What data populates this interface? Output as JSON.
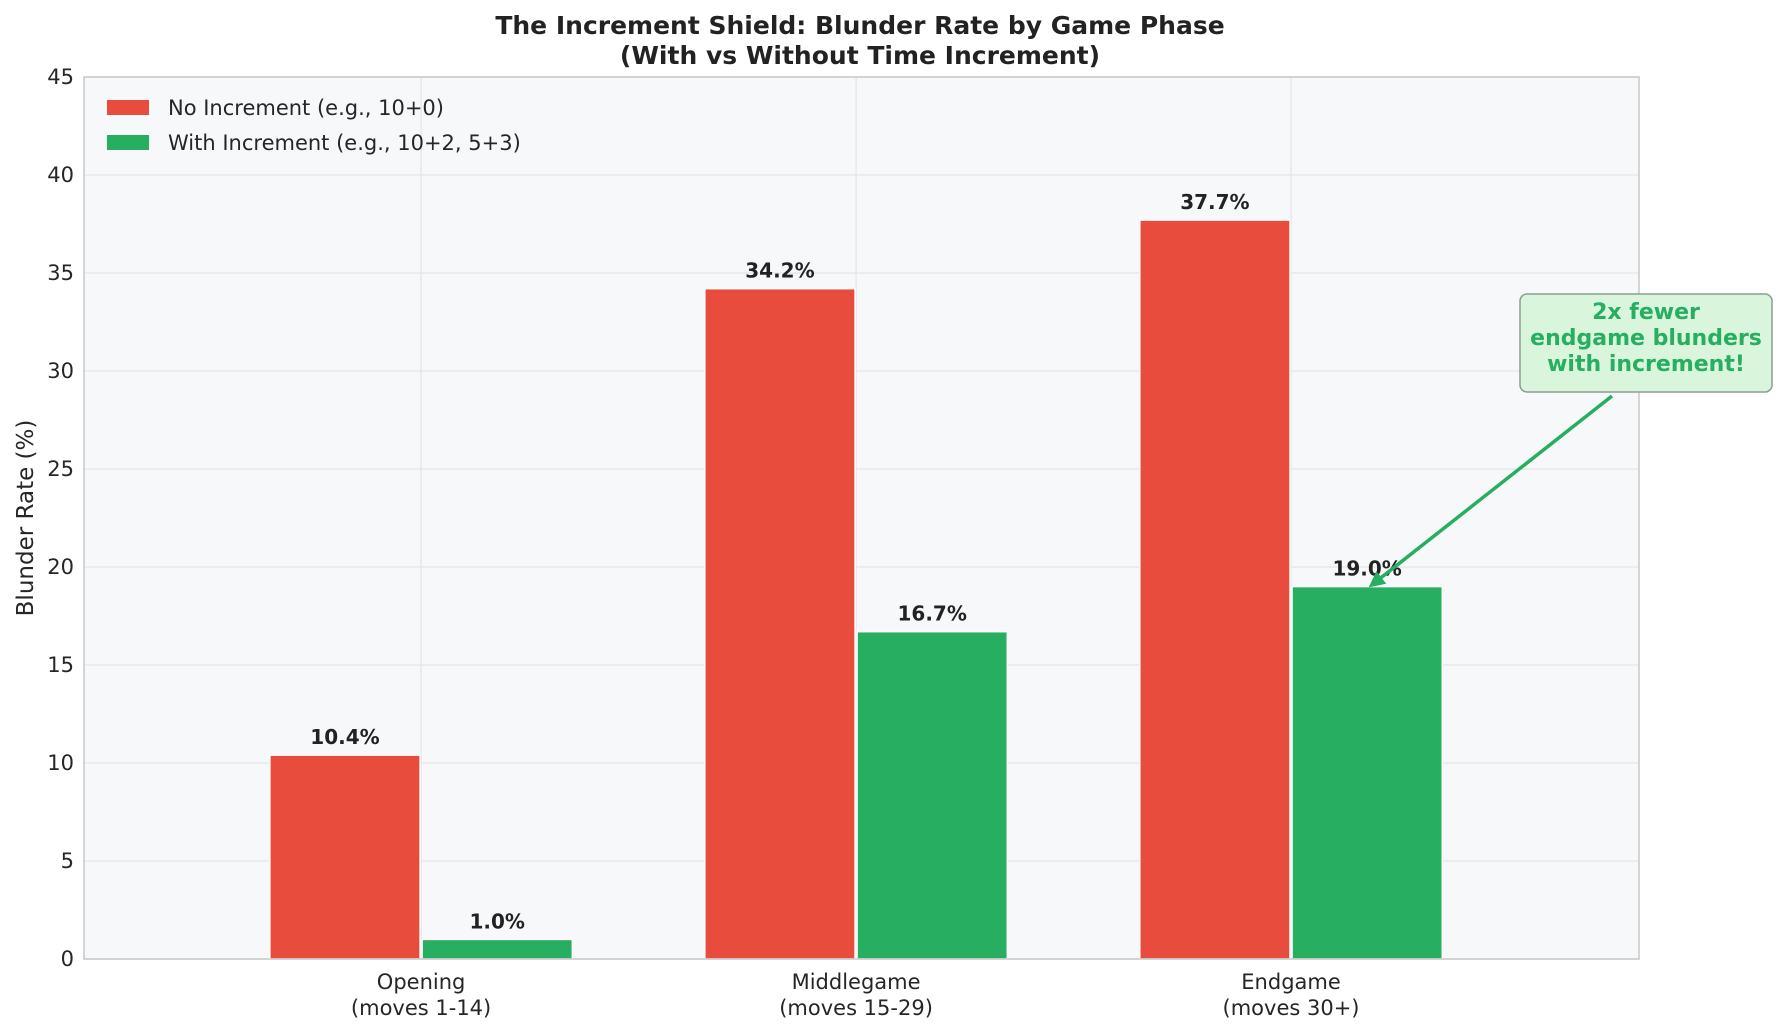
{
  "chart_data": {
    "type": "bar",
    "title": "The Increment Shield: Blunder Rate by Game Phase",
    "subtitle": "(With vs Without Time Increment)",
    "xlabel": "",
    "ylabel": "Blunder Rate (%)",
    "ylim": [
      0,
      45
    ],
    "yticks": [
      0,
      5,
      10,
      15,
      20,
      25,
      30,
      35,
      40,
      45
    ],
    "grid": true,
    "legend_position": "top-left",
    "categories": [
      [
        "Opening",
        "(moves 1-14)"
      ],
      [
        "Middlegame",
        "(moves 15-29)"
      ],
      [
        "Endgame",
        "(moves 30+)"
      ]
    ],
    "series": [
      {
        "name": "No Increment (e.g., 10+0)",
        "color": "#e74c3c",
        "values": [
          10.4,
          34.2,
          37.7
        ],
        "labels": [
          "10.4%",
          "34.2%",
          "37.7%"
        ]
      },
      {
        "name": "With Increment (e.g., 10+2, 5+3)",
        "color": "#27ae60",
        "values": [
          1.0,
          16.7,
          19.0
        ],
        "labels": [
          "1.0%",
          "16.7%",
          "19.0%"
        ]
      }
    ],
    "annotation": {
      "lines": [
        "2x fewer",
        "endgame blunders",
        "with increment!"
      ],
      "color": "#27ae60",
      "box_fill": "#d9f5dc",
      "target_category": 2,
      "target_series": 1
    }
  }
}
